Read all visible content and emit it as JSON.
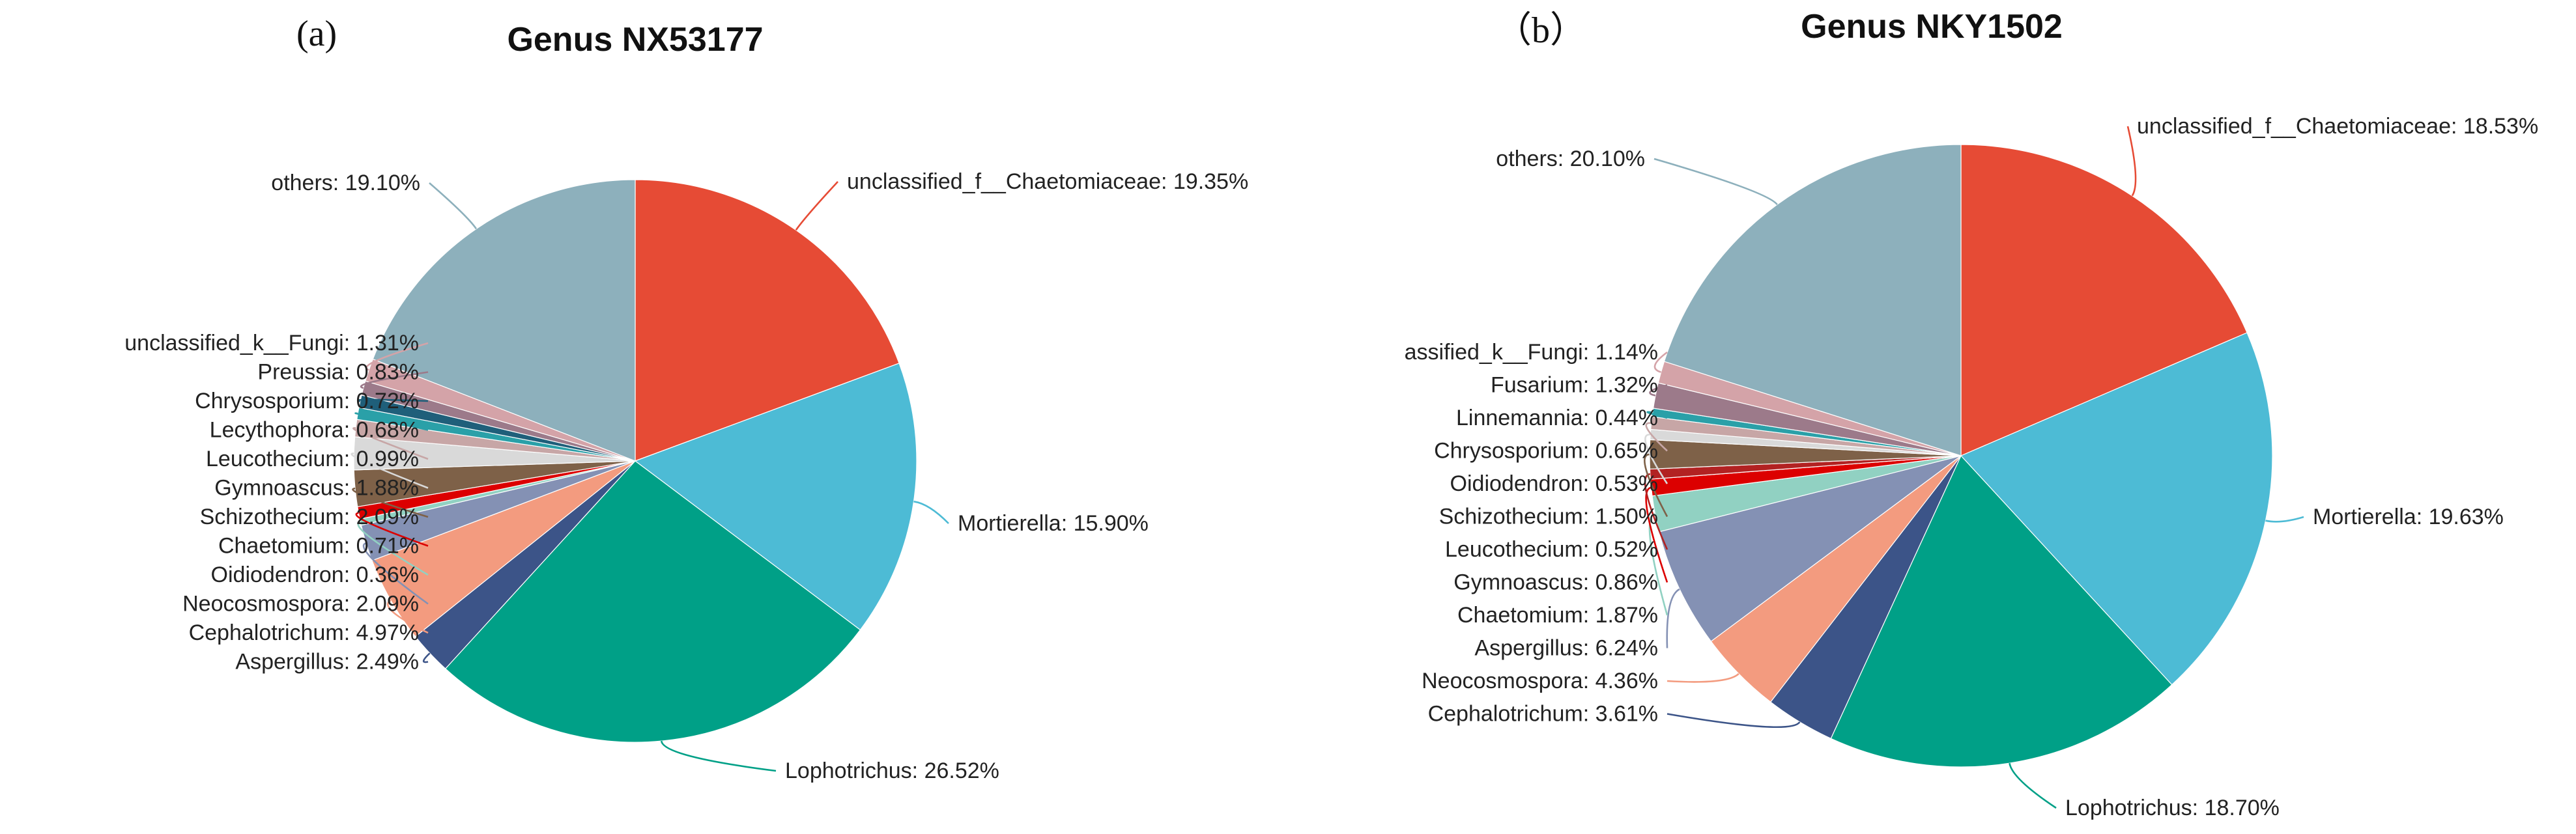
{
  "chart_data": [
    {
      "type": "pie",
      "panel_label": "(a)",
      "title": "Genus NX53177",
      "slices": [
        {
          "label": "unclassified_f__Chaetomiaceae",
          "value": 19.35,
          "display": "19.35%",
          "color": "#E64B35"
        },
        {
          "label": "Mortierella",
          "value": 15.9,
          "display": "15.90%",
          "color": "#4DBBD5"
        },
        {
          "label": "Lophotrichus",
          "value": 26.52,
          "display": "26.52%",
          "color": "#00A087"
        },
        {
          "label": "Aspergillus",
          "value": 2.49,
          "display": "2.49%",
          "color": "#3C5488"
        },
        {
          "label": "Cephalotrichum",
          "value": 4.97,
          "display": "4.97%",
          "color": "#F39B7F"
        },
        {
          "label": "Neocosmospora",
          "value": 2.09,
          "display": "2.09%",
          "color": "#8491B4"
        },
        {
          "label": "Oidiodendron",
          "value": 0.36,
          "display": "0.36%",
          "color": "#91D1C2"
        },
        {
          "label": "Chaetomium",
          "value": 0.71,
          "display": "0.71%",
          "color": "#DC0000"
        },
        {
          "label": "Schizothecium",
          "value": 2.09,
          "display": "2.09%",
          "color": "#7E6148"
        },
        {
          "label": "Gymnoascus",
          "value": 1.88,
          "display": "1.88%",
          "color": "#D9D9D9"
        },
        {
          "label": "Leucothecium",
          "value": 0.99,
          "display": "0.99%",
          "color": "#C7A6A6"
        },
        {
          "label": "Lecythophora",
          "value": 0.68,
          "display": "0.68%",
          "color": "#2AA0A8"
        },
        {
          "label": "Chrysosporium",
          "value": 0.72,
          "display": "0.72%",
          "color": "#1F5F7A"
        },
        {
          "label": "Preussia",
          "value": 0.83,
          "display": "0.83%",
          "color": "#9C7A8A"
        },
        {
          "label": "unclassified_k__Fungi",
          "value": 1.31,
          "display": "1.31%",
          "color": "#D4A3A8"
        },
        {
          "label": "others",
          "value": 19.1,
          "display": "19.10%",
          "color": "#8DB0BC"
        }
      ]
    },
    {
      "type": "pie",
      "panel_label": "（b）",
      "title": "Genus NKY1502",
      "slices": [
        {
          "label": "unclassified_f__Chaetomiaceae",
          "value": 18.53,
          "display": "18.53%",
          "color": "#E64B35"
        },
        {
          "label": "Mortierella",
          "value": 19.63,
          "display": "19.63%",
          "color": "#4DBBD5"
        },
        {
          "label": "Lophotrichus",
          "value": 18.7,
          "display": "18.70%",
          "color": "#00A087"
        },
        {
          "label": "Cephalotrichum",
          "value": 3.61,
          "display": "3.61%",
          "color": "#3C5488"
        },
        {
          "label": "Neocosmospora",
          "value": 4.36,
          "display": "4.36%",
          "color": "#F39B7F"
        },
        {
          "label": "Aspergillus",
          "value": 6.24,
          "display": "6.24%",
          "color": "#8491B4"
        },
        {
          "label": "Chaetomium",
          "value": 1.87,
          "display": "1.87%",
          "color": "#91D1C2"
        },
        {
          "label": "Gymnoascus",
          "value": 0.86,
          "display": "0.86%",
          "color": "#DC0000"
        },
        {
          "label": "Leucothecium",
          "value": 0.52,
          "display": "0.52%",
          "color": "#B22222"
        },
        {
          "label": "Schizothecium",
          "value": 1.5,
          "display": "1.50%",
          "color": "#7E6148"
        },
        {
          "label": "Oidiodendron",
          "value": 0.53,
          "display": "0.53%",
          "color": "#D9D9D9"
        },
        {
          "label": "Chrysosporium",
          "value": 0.65,
          "display": "0.65%",
          "color": "#C7A6A6"
        },
        {
          "label": "Linnemannia",
          "value": 0.44,
          "display": "0.44%",
          "color": "#2AA0A8"
        },
        {
          "label": "Fusarium",
          "value": 1.32,
          "display": "1.32%",
          "color": "#9C7A8A"
        },
        {
          "label": "assified_k__Fungi",
          "value": 1.14,
          "display": "1.14%",
          "color": "#D4A3A8"
        },
        {
          "label": "others",
          "value": 20.1,
          "display": "20.10%",
          "color": "#8DB0BC"
        }
      ]
    }
  ]
}
